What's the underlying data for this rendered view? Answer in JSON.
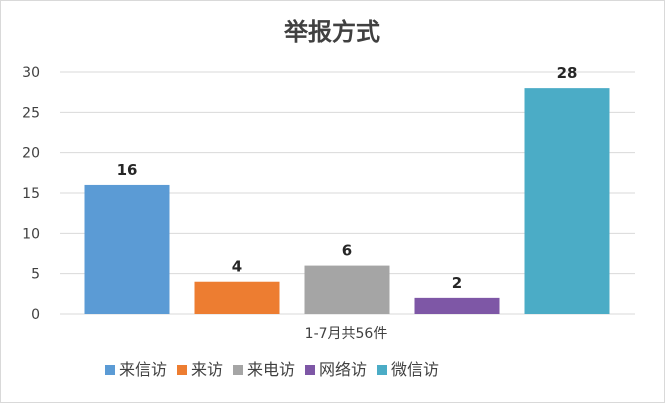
{
  "chart_data": {
    "type": "bar",
    "title": "举报方式",
    "x_category_label": "1-7月共56件",
    "ylim": [
      0,
      30
    ],
    "yticks": [
      0,
      5,
      10,
      15,
      20,
      25,
      30
    ],
    "grid": true,
    "legend_position": "bottom",
    "series": [
      {
        "name": "来信访",
        "value": 16,
        "color": "#5B9BD5"
      },
      {
        "name": "来访",
        "value": 4,
        "color": "#ED7D31"
      },
      {
        "name": "来电访",
        "value": 6,
        "color": "#A5A5A5"
      },
      {
        "name": "网络访",
        "value": 2,
        "color": "#7E57A6"
      },
      {
        "name": "微信访",
        "value": 28,
        "color": "#4BACC6"
      }
    ]
  }
}
